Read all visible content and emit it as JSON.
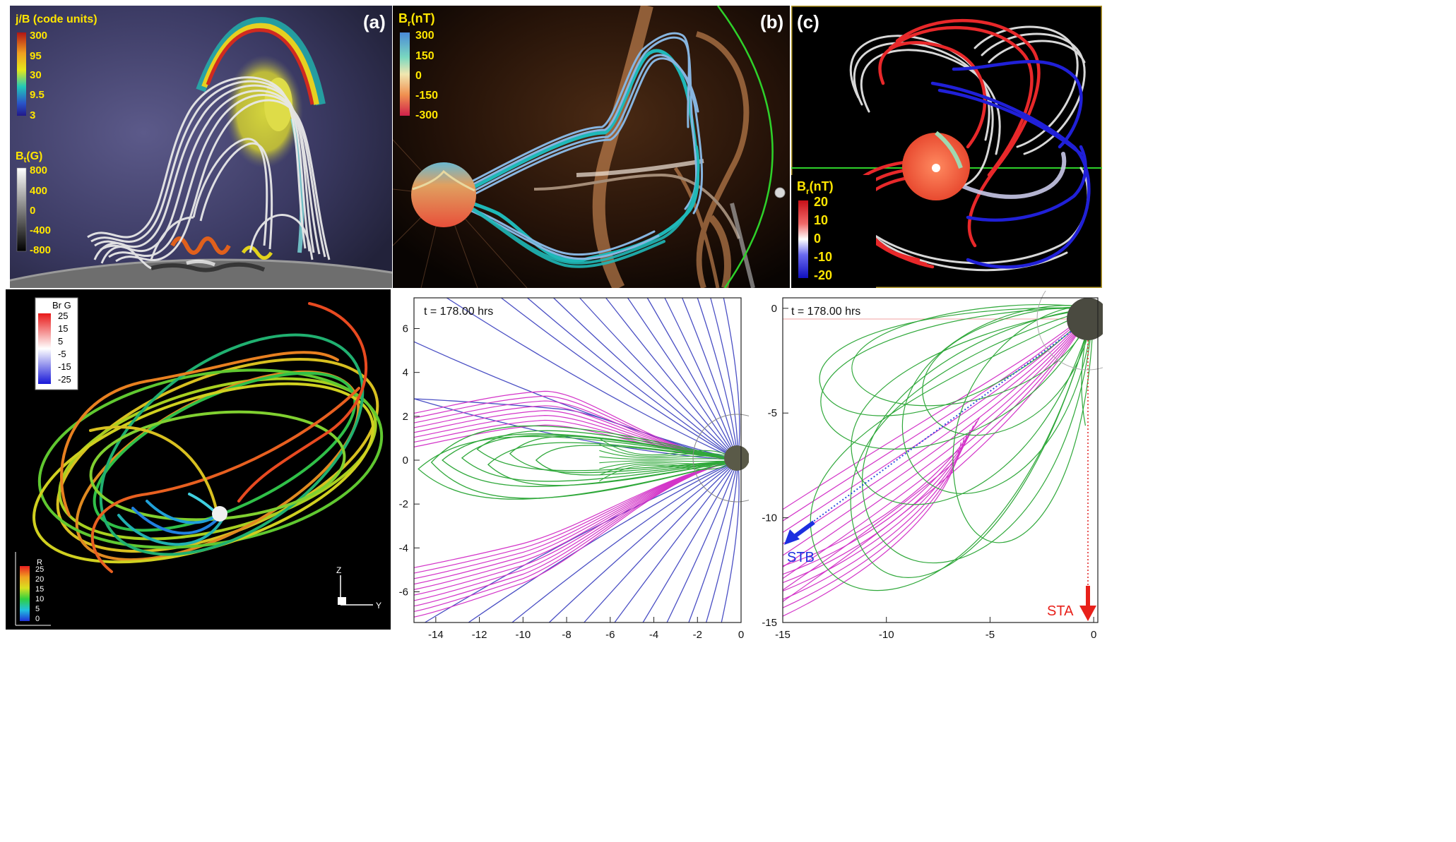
{
  "panels": {
    "a": {
      "label": "(a)",
      "colorbar1": {
        "title": "j/B (code units)",
        "ticks": [
          "300",
          "95",
          "30",
          "9.5",
          "3"
        ]
      },
      "colorbar2": {
        "title_main": "B",
        "title_sub": "t",
        "title_unit": "(G)",
        "ticks": [
          "800",
          "400",
          "0",
          "-400",
          "-800"
        ]
      }
    },
    "b": {
      "label": "(b)",
      "colorbar": {
        "title_main": "B",
        "title_sub": "r",
        "title_unit": "(nT)",
        "ticks": [
          "300",
          "150",
          "0",
          "-150",
          "-300"
        ]
      }
    },
    "c": {
      "label": "(c)",
      "colorbar": {
        "title_main": "B",
        "title_sub": "r",
        "title_unit": "(nT)",
        "ticks": [
          "20",
          "10",
          "0",
          "-10",
          "-20"
        ]
      }
    },
    "d": {
      "colorbar_br": {
        "title": "Br G",
        "ticks": [
          "25",
          "15",
          "5",
          "-5",
          "-15",
          "-25"
        ]
      },
      "colorbar_r": {
        "title": "R",
        "ticks": [
          "25",
          "20",
          "15",
          "10",
          "5",
          "0"
        ]
      },
      "axes": {
        "z": "Z",
        "y": "Y"
      }
    },
    "e": {
      "time": "t = 178.00 hrs",
      "x_ticks": [
        "-14",
        "-12",
        "-10",
        "-8",
        "-6",
        "-4",
        "-2",
        "0"
      ],
      "y_ticks": [
        "6",
        "4",
        "2",
        "0",
        "-2",
        "-4",
        "-6"
      ]
    },
    "f": {
      "time": "t = 178.00 hrs",
      "x_ticks": [
        "-15",
        "-10",
        "-5",
        "0"
      ],
      "y_ticks": [
        "0",
        "-5",
        "-10",
        "-15"
      ],
      "stb_label": "STB",
      "sta_label": "STA"
    }
  },
  "colors": {
    "blue_lines": "#4a4fc4",
    "magenta_lines": "#d334c8",
    "green_lines": "#2fa83a",
    "yellow_text": "#ffe600",
    "stb": "#1c2fe0",
    "sta": "#e8201a"
  }
}
